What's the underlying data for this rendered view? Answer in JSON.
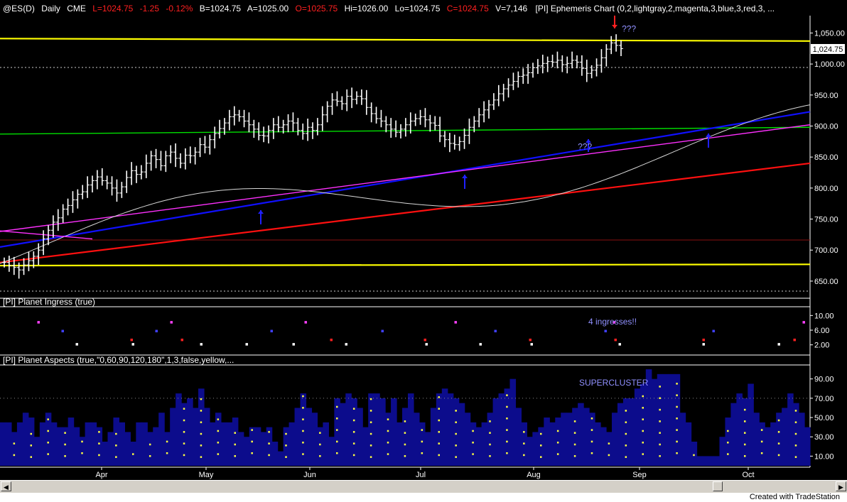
{
  "header": {
    "symbol": "@ES(D)",
    "interval": "Daily",
    "exchange": "CME",
    "last": "L=1024.75",
    "change": "-1.25",
    "pct": "-0.12%",
    "bid": "B=1024.75",
    "ask": "A=1025.00",
    "open": "O=1025.75",
    "high": "Hi=1026.00",
    "low": "Lo=1024.75",
    "close": "C=1024.75",
    "volume": "V=7,146",
    "study": "[PI] Ephemeris Chart (0,2,lightgray,2,magenta,3,blue,3,red,3, ..."
  },
  "colors": {
    "header_red": "#ff2020",
    "price_bar": "#ffffff",
    "yellow": "#ffff00",
    "green": "#00e000",
    "blue": "#1010ff",
    "red": "#ff1010",
    "magenta": "#ff30ff",
    "lightgray": "#d8d8d8",
    "histogram": "#0c0c8c",
    "annotation": "#9090ff"
  },
  "chart_data": [
    {
      "type": "bar",
      "title": "[PI] Ephemeris Chart (0,2,lightgray,2,magenta,3,blue,3,red,3, ...",
      "description_of_series": "Daily OHLC price bars for @ES(D) with ephemeris overlay lines",
      "x_labels": [
        "Apr",
        "May",
        "Jun",
        "Jul",
        "Aug",
        "Sep",
        "Oct"
      ],
      "y_ticks": [
        650,
        700,
        750,
        800,
        850,
        900,
        950,
        1000,
        1050
      ],
      "y_tick_labels": [
        "650.00",
        "700.00",
        "750.00",
        "800.00",
        "850.00",
        "900.00",
        "950.00",
        "1,000.00",
        "1,050.00"
      ],
      "ylim": [
        627,
        1078
      ],
      "last_price_label": "1,024.75",
      "last_price": 1024.75,
      "series": [
        {
          "name": "ES daily close",
          "values": [
            680,
            675,
            672,
            668,
            676,
            683,
            690,
            700,
            718,
            732,
            745,
            752,
            766,
            772,
            781,
            790,
            794,
            805,
            812,
            818,
            812,
            808,
            800,
            792,
            802,
            817,
            828,
            822,
            826,
            840,
            852,
            846,
            836,
            852,
            858,
            848,
            840,
            853,
            852,
            858,
            870,
            866,
            878,
            888,
            896,
            905,
            915,
            918,
            915,
            908,
            902,
            895,
            885,
            884,
            893,
            902,
            898,
            902,
            908,
            905,
            893,
            888,
            898,
            893,
            902,
            918,
            932,
            942,
            940,
            936,
            948,
            943,
            948,
            944,
            930,
            920,
            912,
            908,
            902,
            895,
            890,
            895,
            902,
            908,
            912,
            915,
            910,
            905,
            901,
            884,
            878,
            872,
            870,
            875,
            885,
            898,
            908,
            918,
            926,
            934,
            942,
            952,
            960,
            966,
            972,
            980,
            982,
            986,
            994,
            997,
            1001,
            1004,
            1003,
            1006,
            999,
            1001,
            1006,
            1003,
            993,
            985,
            990,
            998,
            1010,
            1024,
            1034,
            1030,
            1024.75
          ]
        }
      ],
      "overlay_lines": [
        {
          "name": "yellow upper",
          "color": "#ffff00",
          "y_start": 1041,
          "y_end": 1037
        },
        {
          "name": "yellow lower",
          "color": "#ffff00",
          "y_start": 675,
          "y_end": 677
        },
        {
          "name": "green",
          "color": "#00e000",
          "y_start": 887,
          "y_end": 898
        },
        {
          "name": "blue",
          "color": "#1010ff",
          "y_start": 705,
          "y_end": 923
        },
        {
          "name": "red",
          "color": "#ff1010",
          "y_start": 680,
          "y_end": 840
        },
        {
          "name": "magenta",
          "color": "#ff30ff",
          "y_start": 730,
          "y_end": 902
        }
      ],
      "annotations": [
        {
          "text": "???",
          "x_index": 125,
          "y": 1052
        },
        {
          "text": "???",
          "x_index": 116,
          "y": 862
        }
      ]
    },
    {
      "type": "scatter",
      "title": "[PI] Planet Ingress (true)",
      "y_ticks": [
        2,
        6,
        10
      ],
      "y_tick_labels": [
        "2.00",
        "6.00",
        "10.00"
      ],
      "annotation": "4 ingresses!!"
    },
    {
      "type": "bar",
      "title": "[PI] Planet Aspects (true,\"0,60,90,120,180\",1,3,false,yellow,...",
      "y_ticks": [
        10,
        30,
        50,
        70,
        90
      ],
      "y_tick_labels": [
        "10.00",
        "30.00",
        "50.00",
        "70.00",
        "90.00"
      ],
      "ylim": [
        0,
        103
      ],
      "annotation": "SUPERCLUSTER",
      "values": [
        45,
        45,
        35,
        45,
        55,
        50,
        30,
        45,
        55,
        45,
        40,
        40,
        50,
        40,
        30,
        45,
        45,
        40,
        25,
        35,
        50,
        45,
        35,
        25,
        45,
        45,
        35,
        40,
        55,
        35,
        60,
        75,
        65,
        70,
        60,
        80,
        60,
        45,
        55,
        45,
        45,
        50,
        35,
        30,
        40,
        40,
        35,
        40,
        25,
        15,
        40,
        45,
        60,
        75,
        60,
        55,
        40,
        45,
        30,
        70,
        65,
        75,
        70,
        60,
        40,
        75,
        75,
        70,
        55,
        70,
        45,
        60,
        75,
        55,
        45,
        35,
        60,
        75,
        80,
        75,
        70,
        65,
        55,
        45,
        40,
        45,
        55,
        70,
        75,
        80,
        90,
        60,
        45,
        30,
        35,
        40,
        50,
        45,
        50,
        55,
        55,
        60,
        65,
        60,
        55,
        45,
        40,
        35,
        55,
        65,
        70,
        70,
        80,
        85,
        100,
        90,
        95,
        95,
        95,
        95,
        55,
        45,
        25,
        10,
        10,
        10,
        10,
        30,
        50,
        65,
        75,
        70,
        85,
        55,
        45,
        40,
        45,
        55,
        60,
        75,
        65,
        55,
        40
      ]
    }
  ],
  "footer": {
    "created": "Created with TradeStation"
  }
}
